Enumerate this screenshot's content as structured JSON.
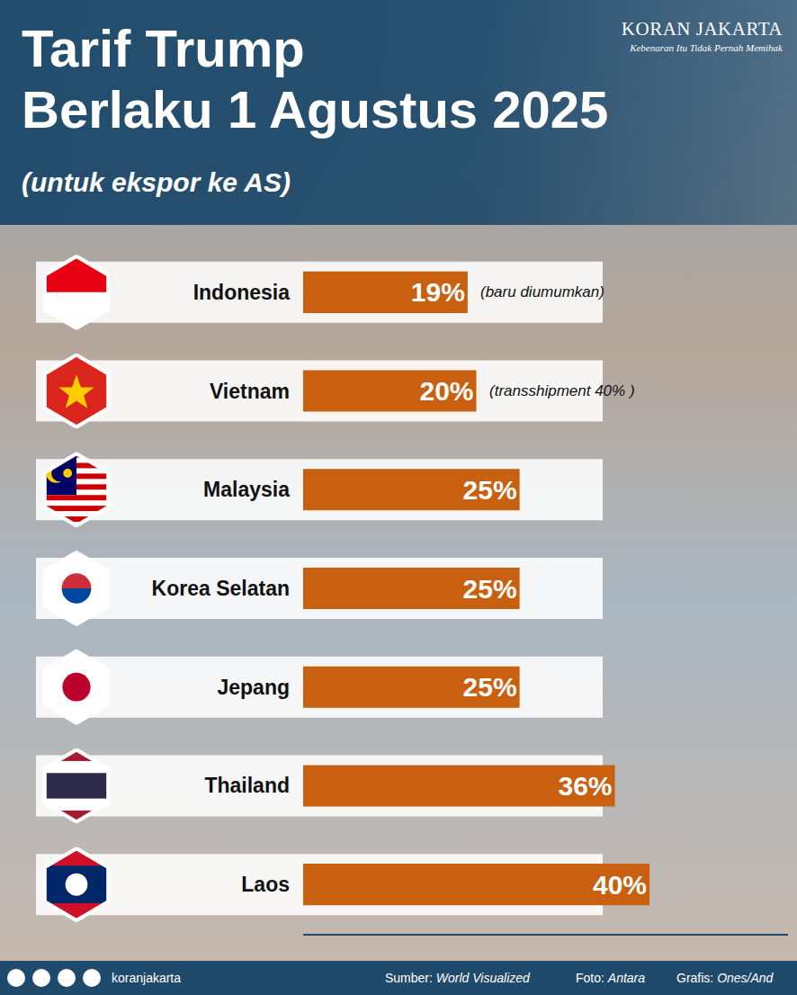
{
  "chart_data": {
    "type": "bar",
    "orientation": "horizontal",
    "title": "Tarif Trump\nBerlaku 1 Agustus 2025",
    "subtitle": "(untuk ekspor ke AS)",
    "categories": [
      "Indonesia",
      "Vietnam",
      "Malaysia",
      "Korea Selatan",
      "Jepang",
      "Thailand",
      "Laos"
    ],
    "values": [
      19,
      20,
      25,
      25,
      25,
      36,
      40
    ],
    "value_labels": [
      "19%",
      "20%",
      "25%",
      "25%",
      "25%",
      "36%",
      "40%"
    ],
    "color": "#c8600f",
    "xlim": [
      0,
      56
    ],
    "data_labels": true,
    "tick_labels": "y",
    "annotations": [
      {
        "category": "Indonesia",
        "text": "(baru diumumkan)"
      },
      {
        "category": "Vietnam",
        "text": "(transshipment 40% )"
      }
    ],
    "publisher": "KORAN JAKARTA",
    "tagline": "Kebenaran Itu Tidak Pernah Memihak",
    "social": "koranjakarta",
    "source": {
      "label": "Sumber:",
      "text": "World Visualized"
    },
    "photo": {
      "label": "Foto:",
      "text": "Antara"
    },
    "graphic": {
      "label": "Grafis:",
      "text": "Ones/And"
    }
  }
}
